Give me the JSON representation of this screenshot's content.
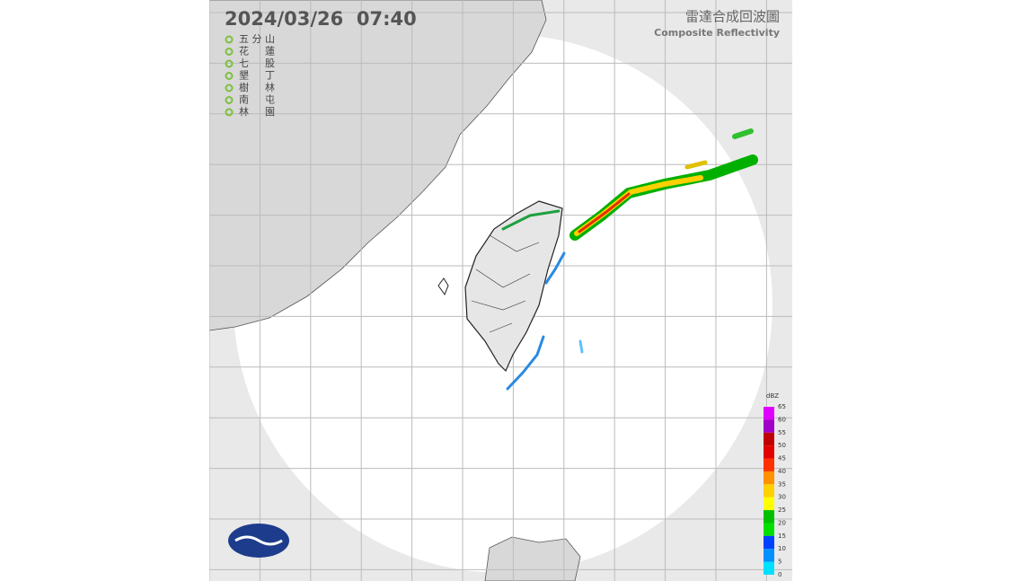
{
  "header": {
    "timestamp": "2024/03/26  07:40",
    "title": "雷達合成回波圖",
    "subtitle": "Composite Reflectivity"
  },
  "stations": [
    "五分山",
    "花蓮",
    "七股",
    "墾丁",
    "樹林",
    "南屯",
    "林園"
  ],
  "colorbar": {
    "unit": "dBZ",
    "ticks": [
      65,
      60,
      55,
      50,
      45,
      40,
      35,
      30,
      25,
      20,
      15,
      10,
      5,
      0
    ],
    "colors": [
      "#e000ff",
      "#a000c8",
      "#c00000",
      "#e00000",
      "#ff3000",
      "#ff9000",
      "#ffd000",
      "#ffff00",
      "#00c000",
      "#00e000",
      "#0040ff",
      "#0090ff",
      "#00e0ff"
    ]
  }
}
